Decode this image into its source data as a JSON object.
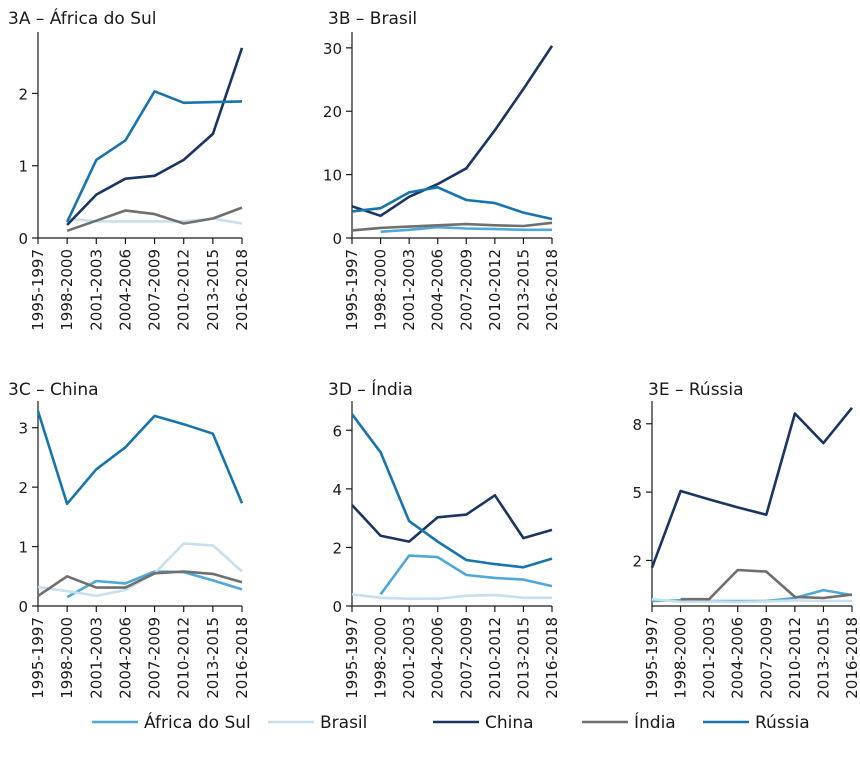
{
  "legend": [
    {
      "name": "África do Sul",
      "color": "#4ea8d8"
    },
    {
      "name": "Brasil",
      "color": "#c6e0ef"
    },
    {
      "name": "China",
      "color": "#1b3563"
    },
    {
      "name": "Índia",
      "color": "#6f6f6f"
    },
    {
      "name": "Rússia",
      "color": "#1874ae"
    }
  ],
  "chart_data": [
    {
      "type": "line",
      "title": "3A – África do Sul",
      "categories": [
        "1995-1997",
        "1998-2000",
        "2001-2003",
        "2004-2006",
        "2007-2009",
        "2010-2012",
        "2013-2015",
        "2016-2018"
      ],
      "yticks": [
        0,
        1,
        2
      ],
      "ylim": [
        0,
        2.85
      ],
      "series": [
        {
          "name": "Brasil",
          "values": [
            null,
            0.27,
            0.23,
            0.23,
            0.23,
            0.23,
            0.27,
            0.2
          ]
        },
        {
          "name": "China",
          "values": [
            null,
            0.18,
            0.6,
            0.82,
            0.86,
            1.08,
            1.44,
            2.63
          ]
        },
        {
          "name": "Índia",
          "values": [
            null,
            0.1,
            0.24,
            0.38,
            0.33,
            0.2,
            0.27,
            0.42
          ]
        },
        {
          "name": "Rússia",
          "values": [
            null,
            0.22,
            1.08,
            1.35,
            2.03,
            1.87,
            1.88,
            1.89
          ]
        }
      ]
    },
    {
      "type": "line",
      "title": "3B – Brasil",
      "categories": [
        "1995-1997",
        "1998-2000",
        "2001-2003",
        "2004-2006",
        "2007-2009",
        "2010-2012",
        "2013-2015",
        "2016-2018"
      ],
      "yticks": [
        0,
        10,
        20,
        30
      ],
      "ylim": [
        0,
        32.5
      ],
      "series": [
        {
          "name": "África do Sul",
          "values": [
            null,
            1.0,
            1.3,
            1.7,
            1.5,
            1.4,
            1.3,
            1.3
          ]
        },
        {
          "name": "China",
          "values": [
            5.0,
            3.5,
            6.5,
            8.5,
            11.0,
            17.0,
            23.5,
            30.3
          ]
        },
        {
          "name": "Índia",
          "values": [
            1.2,
            1.6,
            1.8,
            2.0,
            2.2,
            2.0,
            1.9,
            2.4
          ]
        },
        {
          "name": "Rússia",
          "values": [
            4.2,
            4.7,
            7.2,
            8.0,
            6.0,
            5.5,
            4.0,
            3.0
          ]
        }
      ]
    },
    {
      "type": "line",
      "title": "3C – China",
      "categories": [
        "1995-1997",
        "1998-2000",
        "2001-2003",
        "2004-2006",
        "2007-2009",
        "2010-2012",
        "2013-2015",
        "2016-2018"
      ],
      "yticks": [
        0,
        1,
        2,
        3
      ],
      "ylim": [
        0,
        3.45
      ],
      "series": [
        {
          "name": "África do Sul",
          "values": [
            null,
            0.15,
            0.42,
            0.38,
            0.58,
            0.57,
            0.43,
            0.28
          ]
        },
        {
          "name": "Brasil",
          "values": [
            0.32,
            0.25,
            0.17,
            0.27,
            0.55,
            1.05,
            1.02,
            0.58
          ]
        },
        {
          "name": "Índia",
          "values": [
            0.17,
            0.5,
            0.31,
            0.31,
            0.55,
            0.58,
            0.54,
            0.4
          ]
        },
        {
          "name": "Rússia",
          "values": [
            3.28,
            1.72,
            2.3,
            2.67,
            3.2,
            3.06,
            2.9,
            1.73
          ]
        }
      ]
    },
    {
      "type": "line",
      "title": "3D – Índia",
      "categories": [
        "1995-1997",
        "1998-2000",
        "2001-2003",
        "2004-2006",
        "2007-2009",
        "2010-2012",
        "2013-2015",
        "2016-2018"
      ],
      "yticks": [
        0,
        2,
        4,
        6
      ],
      "ylim": [
        0,
        7.0
      ],
      "series": [
        {
          "name": "África do Sul",
          "values": [
            null,
            0.4,
            1.72,
            1.67,
            1.06,
            0.96,
            0.9,
            0.68
          ]
        },
        {
          "name": "Brasil",
          "values": [
            0.4,
            0.28,
            0.25,
            0.25,
            0.35,
            0.38,
            0.28,
            0.28
          ]
        },
        {
          "name": "China",
          "values": [
            3.45,
            2.4,
            2.2,
            3.03,
            3.12,
            3.78,
            2.32,
            2.6
          ]
        },
        {
          "name": "Rússia",
          "values": [
            6.55,
            5.25,
            2.9,
            2.2,
            1.57,
            1.43,
            1.32,
            1.62
          ]
        }
      ]
    },
    {
      "type": "line",
      "title": "3E – Rússia",
      "categories": [
        "1995-1997",
        "1998-2000",
        "2001-2003",
        "2004-2006",
        "2007-2009",
        "2010-2012",
        "2013-2015",
        "2016-2018"
      ],
      "yticks": [
        2,
        5,
        8
      ],
      "ytick_values": [
        2,
        5,
        8
      ],
      "ylim": [
        0,
        9.0
      ],
      "series": [
        {
          "name": "África do Sul",
          "values": [
            0.22,
            0.25,
            0.22,
            0.22,
            0.22,
            0.35,
            0.7,
            0.48
          ]
        },
        {
          "name": "Brasil",
          "values": [
            0.3,
            0.18,
            0.2,
            0.18,
            0.2,
            0.25,
            0.22,
            0.22
          ]
        },
        {
          "name": "China",
          "values": [
            1.68,
            5.05,
            4.68,
            4.33,
            4.01,
            8.45,
            7.15,
            8.7
          ]
        },
        {
          "name": "Índia",
          "values": [
            null,
            0.3,
            0.3,
            1.58,
            1.51,
            0.4,
            0.35,
            0.5
          ]
        }
      ]
    }
  ]
}
